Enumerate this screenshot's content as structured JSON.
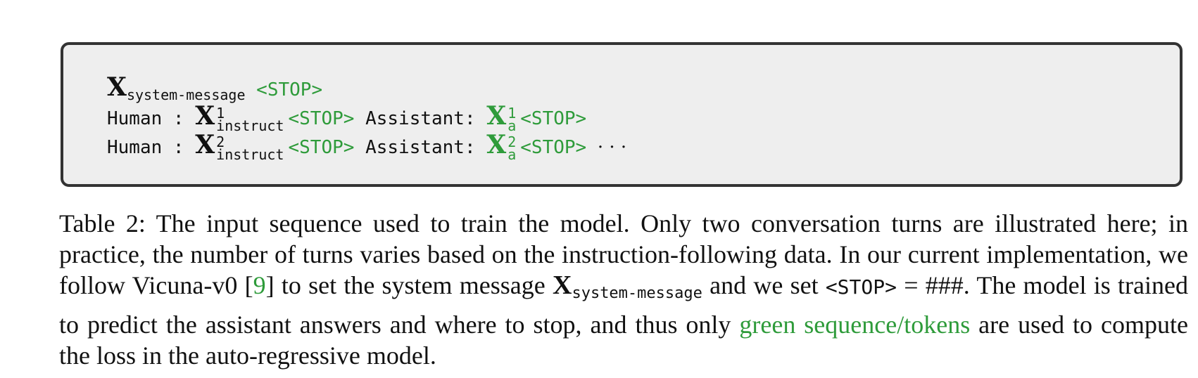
{
  "sequence": {
    "x_symbol": "X",
    "system_sub": "system-message",
    "stop_token": "<STOP>",
    "human_label": "Human :",
    "assistant_label": "Assistant:",
    "instruct_sub": "instruct",
    "answer_sub": "a",
    "turn1_sup": "1",
    "turn2_sup": "2",
    "ellipsis": "· · ·"
  },
  "caption": {
    "part1": "Table 2: The input sequence used to train the model. Only two conversation turns are illustrated here; in practice, the number of turns varies based on the instruction-following data. In our current implementation, we follow Vicuna-v0 [",
    "ref": "9",
    "part2": "] to set the system message ",
    "x_symbol": "X",
    "x_sub": "system-message",
    "part3": " and we set ",
    "stop_token": "<STOP>",
    "part4": " = ###. The model is trained to predict the assistant answers and where to stop, and thus only ",
    "green_text": "green sequence/tokens",
    "part5": " are used to compute the loss in the auto-regressive model."
  },
  "colors": {
    "green": "#2e9b3a",
    "box_bg": "#eeeeee",
    "border": "#333333"
  }
}
